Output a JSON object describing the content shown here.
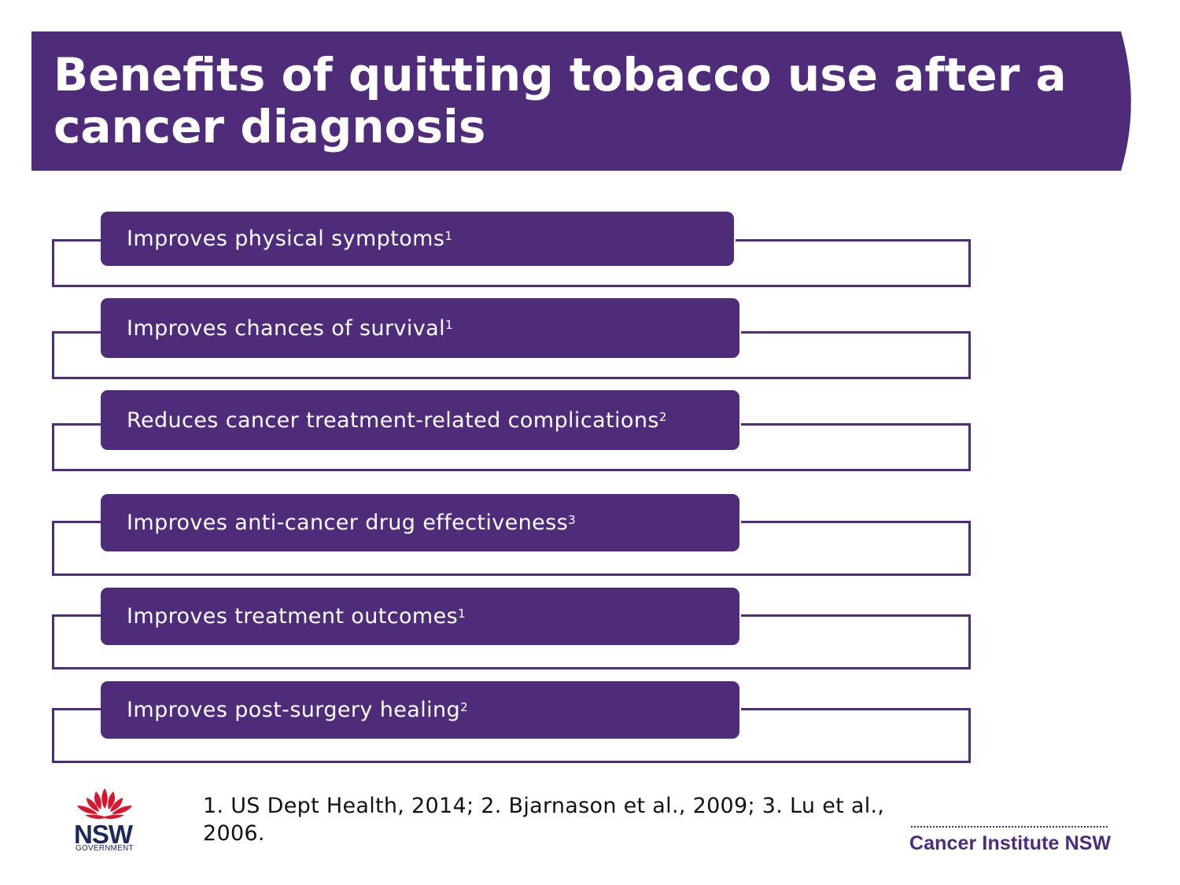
{
  "slide": {
    "title": "Benefits of quitting tobacco use after a cancer diagnosis",
    "accent_color": "#4f2c7a"
  },
  "benefits": [
    {
      "text": "Improves physical symptoms",
      "ref": "1"
    },
    {
      "text": "Improves chances of survival",
      "ref": "1"
    },
    {
      "text": "Reduces cancer treatment-related complications",
      "ref": "2"
    },
    {
      "text": "Improves anti-cancer drug effectiveness",
      "ref": "3"
    },
    {
      "text": "Improves treatment outcomes",
      "ref": "1"
    },
    {
      "text": "Improves post-surgery healing",
      "ref": "2"
    }
  ],
  "footnote": "1. US Dept Health, 2014; 2. Bjarnason et al., 2009; 3. Lu et al., 2006.",
  "logos": {
    "nsw": {
      "word": "NSW",
      "sub": "GOVERNMENT",
      "icon": "waratah-flower-icon"
    },
    "cancer_institute": "Cancer Institute NSW"
  }
}
